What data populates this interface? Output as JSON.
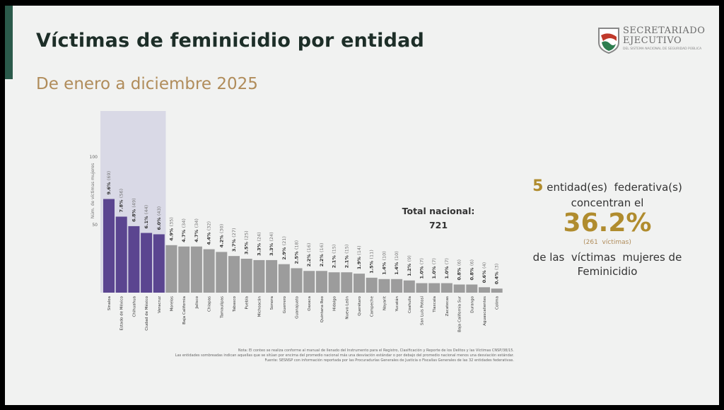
{
  "header": {
    "title": "Víctimas de feminicidio por entidad",
    "subtitle": "De enero a diciembre 2025"
  },
  "logo": {
    "line1": "SECRETARIADO",
    "line2": "EJECUTIVO",
    "line3": "DEL SISTEMA NACIONAL DE SEGURIDAD PÚBLICA"
  },
  "colors": {
    "highlight": "#5b4590",
    "other": "#9c9c9c",
    "highlight_band": "#d9d9e6",
    "accent": "#2b5a4b",
    "gold": "#b08c2e"
  },
  "total": {
    "label": "Total nacional:",
    "value": "721"
  },
  "summary": {
    "count": "5",
    "line1": "entidad(es)  federativa(s)",
    "line2": "concentran el",
    "percent": "36.2%",
    "victims": "(261  víctimas)",
    "line3": "de las  víctimas  mujeres de",
    "line4": "Feminicidio"
  },
  "notes": [
    "Nota: El conteo se realiza conforme al manual de llenado del Instrumento para el Registro, Clasificación y Reporte de los Delitos y las Víctimas CNSP/38/15.",
    "Las entidades sombreadas indican aquellas que se sitúan por encima del promedio nacional más una desviación estándar o por debajo del promedio nacional menos una desviación estándar.",
    "Fuente: SESNSP con información reportada por las Procuradurías Generales de Justicia o Fiscalías Generales de las 32 entidades federativas."
  ],
  "chart_data": {
    "type": "bar",
    "ylabel": "Núm. de víctimas mujeres",
    "yticks": [
      50,
      100
    ],
    "ylim": [
      0,
      100
    ],
    "grid": false,
    "categories": [
      "Sinaloa",
      "Estado de México",
      "Chihuahua",
      "Ciudad de México",
      "Veracruz",
      "Morelos",
      "Baja California",
      "Jalisco",
      "Chiapas",
      "Tamaulipas",
      "Tabasco",
      "Puebla",
      "Michoacán",
      "Sonora",
      "Guerrero",
      "Guanajuato",
      "Oaxaca",
      "Quintana Roo",
      "Hidalgo",
      "Nuevo León",
      "Querétaro",
      "Campeche",
      "Nayarit",
      "Yucatán",
      "Coahuila",
      "San Luis Potosí",
      "Tlaxcala",
      "Zacatecas",
      "Baja California Sur",
      "Durango",
      "Aguascalientes",
      "Colima"
    ],
    "values": [
      69,
      56,
      49,
      44,
      43,
      35,
      34,
      34,
      32,
      30,
      27,
      25,
      24,
      24,
      21,
      18,
      16,
      16,
      15,
      15,
      14,
      11,
      10,
      10,
      9,
      7,
      7,
      7,
      6,
      6,
      4,
      3
    ],
    "percent_labels": [
      "9.6%",
      "7.8%",
      "6.8%",
      "6.1%",
      "6.0%",
      "4.9%",
      "4.7%",
      "4.7%",
      "4.4%",
      "4.2%",
      "3.7%",
      "3.5%",
      "3.3%",
      "3.3%",
      "2.9%",
      "2.5%",
      "2.2%",
      "2.2%",
      "2.1%",
      "2.1%",
      "1.9%",
      "1.5%",
      "1.4%",
      "1.4%",
      "1.2%",
      "1.0%",
      "1.0%",
      "1.0%",
      "0.8%",
      "0.8%",
      "0.6%",
      "0.4%"
    ],
    "highlighted_count": 5
  }
}
